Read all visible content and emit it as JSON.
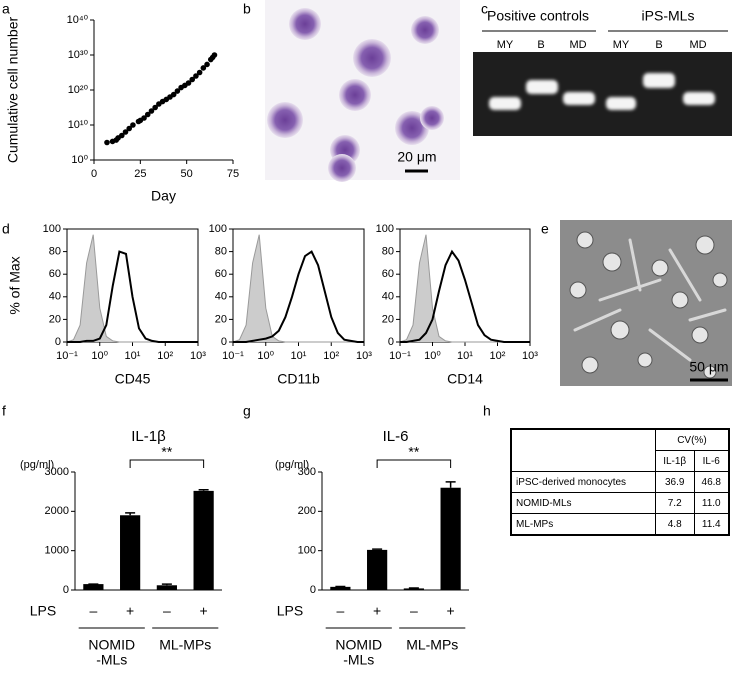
{
  "panel_labels": [
    "a",
    "b",
    "c",
    "d",
    "e",
    "f",
    "g",
    "h"
  ],
  "chart_data": [
    {
      "type": "scatter",
      "xlabel": "Day",
      "ylabel": "Cumulative cell number",
      "color": "#000000",
      "yscale": "log",
      "x": [
        7,
        10,
        12,
        13,
        15,
        17,
        19,
        21,
        24,
        25,
        27,
        29,
        31,
        33,
        35,
        37,
        39,
        41,
        43,
        45,
        47,
        49,
        51,
        53,
        55,
        57,
        59,
        61,
        63,
        64,
        65
      ],
      "values": [
        100000.0,
        200000.0,
        500000.0,
        2000000.0,
        10000000.0,
        100000000.0,
        1000000000.0,
        10000000000.0,
        100000000000.0,
        200000000000.0,
        1000000000000.0,
        10000000000000.0,
        100000000000000.0,
        1000000000000000.0,
        1e+16,
        5e+16,
        2e+17,
        1e+18,
        5e+18,
        5e+19,
        5e+20,
        2e+21,
        1e+22,
        1e+23,
        1e+24,
        1e+25,
        2e+26,
        2e+27,
        5e+28,
        2e+29,
        1e+30
      ],
      "xlim": [
        0,
        75
      ],
      "xticks": [
        0,
        25,
        50,
        75
      ],
      "ylim": [
        1,
        1e+40
      ],
      "yticks": [
        {
          "value": 1,
          "label": "10⁰"
        },
        {
          "value": 10000000000.0,
          "label": "10¹⁰"
        },
        {
          "value": 1e+20,
          "label": "10²⁰"
        },
        {
          "value": 1e+30,
          "label": "10³⁰"
        },
        {
          "value": 1e+40,
          "label": "10⁴⁰"
        }
      ]
    },
    {
      "type": "line",
      "xlabel": "CD45",
      "ylabel": "% of Max",
      "xscale": "log",
      "x": [
        0.1,
        0.158,
        0.251,
        0.398,
        0.631,
        1,
        1.58,
        2.51,
        3.98,
        6.31,
        10,
        15.8,
        25.1,
        39.8,
        63.1,
        100,
        158,
        251,
        398,
        631,
        1000
      ],
      "series": [
        {
          "color": "#9a9a9a",
          "fill": "#cccccc",
          "values": [
            0,
            2,
            15,
            70,
            95,
            30,
            5,
            1,
            0,
            0,
            0,
            0,
            0,
            0,
            0,
            0,
            0,
            0,
            0,
            0,
            0
          ]
        },
        {
          "color": "#000000",
          "values": [
            0,
            0,
            0,
            1,
            1,
            3,
            15,
            50,
            80,
            78,
            40,
            12,
            3,
            1,
            0,
            0,
            0,
            0,
            0,
            0,
            0
          ]
        }
      ],
      "xlim": [
        0.1,
        1000
      ],
      "xticks": [
        {
          "value": 0.1,
          "label": "10⁻¹"
        },
        {
          "value": 1,
          "label": "10⁰"
        },
        {
          "value": 10,
          "label": "10¹"
        },
        {
          "value": 100,
          "label": "10²"
        },
        {
          "value": 1000,
          "label": "10³"
        }
      ],
      "ylim": [
        0,
        100
      ],
      "yticks": [
        0,
        20,
        40,
        60,
        80,
        100
      ]
    },
    {
      "type": "line",
      "xlabel": "CD11b",
      "xscale": "log",
      "x": [
        0.1,
        0.158,
        0.251,
        0.398,
        0.631,
        1,
        1.58,
        2.51,
        3.98,
        6.31,
        10,
        15.8,
        25.1,
        39.8,
        63.1,
        100,
        158,
        251,
        398,
        631,
        1000
      ],
      "series": [
        {
          "color": "#9a9a9a",
          "fill": "#cccccc",
          "values": [
            0,
            2,
            15,
            70,
            95,
            30,
            5,
            1,
            0,
            0,
            0,
            0,
            0,
            0,
            0,
            0,
            0,
            0,
            0,
            0,
            0
          ]
        },
        {
          "color": "#000000",
          "values": [
            0,
            0,
            0,
            1,
            2,
            3,
            5,
            10,
            22,
            40,
            60,
            76,
            80,
            68,
            45,
            22,
            8,
            2,
            1,
            0,
            0
          ]
        }
      ],
      "xlim": [
        0.1,
        1000
      ],
      "xticks": [
        {
          "value": 0.1,
          "label": "10⁻¹"
        },
        {
          "value": 1,
          "label": "10⁰"
        },
        {
          "value": 10,
          "label": "10¹"
        },
        {
          "value": 100,
          "label": "10²"
        },
        {
          "value": 1000,
          "label": "10³"
        }
      ],
      "ylim": [
        0,
        100
      ],
      "yticks": [
        0,
        20,
        40,
        60,
        80,
        100
      ]
    },
    {
      "type": "line",
      "xlabel": "CD14",
      "xscale": "log",
      "x": [
        0.1,
        0.158,
        0.251,
        0.398,
        0.631,
        1,
        1.58,
        2.51,
        3.98,
        6.31,
        10,
        15.8,
        25.1,
        39.8,
        63.1,
        100,
        158,
        251,
        398,
        631,
        1000
      ],
      "series": [
        {
          "color": "#9a9a9a",
          "fill": "#cccccc",
          "values": [
            0,
            2,
            15,
            70,
            95,
            30,
            5,
            1,
            0,
            0,
            0,
            0,
            0,
            0,
            0,
            0,
            0,
            0,
            0,
            0,
            0
          ]
        },
        {
          "color": "#000000",
          "values": [
            0,
            0,
            1,
            2,
            8,
            20,
            45,
            68,
            80,
            72,
            55,
            35,
            15,
            6,
            2,
            1,
            0,
            0,
            0,
            0,
            0
          ]
        }
      ],
      "xlim": [
        0.1,
        1000
      ],
      "xticks": [
        {
          "value": 0.1,
          "label": "10⁻¹"
        },
        {
          "value": 1,
          "label": "10⁰"
        },
        {
          "value": 10,
          "label": "10¹"
        },
        {
          "value": 100,
          "label": "10²"
        },
        {
          "value": 1000,
          "label": "10³"
        }
      ],
      "ylim": [
        0,
        100
      ],
      "yticks": [
        0,
        20,
        40,
        60,
        80,
        100
      ]
    },
    {
      "type": "bar",
      "title": "IL-1β",
      "ylabel": "(pg/ml)",
      "color": "#000000",
      "row_label": "LPS",
      "categories": [
        "–",
        "+",
        "–",
        "+"
      ],
      "groups": [
        [
          "NOMID",
          "-MLs"
        ],
        [
          "ML-MPs"
        ]
      ],
      "values": [
        150,
        1900,
        120,
        2520
      ],
      "errors": [
        0,
        60,
        30,
        30
      ],
      "annotation": "**",
      "ylim": [
        0,
        3000
      ],
      "yticks": [
        0,
        1000,
        2000,
        3000
      ]
    },
    {
      "type": "bar",
      "title": "IL-6",
      "ylabel": "(pg/ml)",
      "color": "#000000",
      "row_label": "LPS",
      "categories": [
        "–",
        "+",
        "–",
        "+"
      ],
      "groups": [
        [
          "NOMID",
          "-MLs"
        ],
        [
          "ML-MPs"
        ]
      ],
      "values": [
        8,
        102,
        4,
        260
      ],
      "errors": [
        1,
        2,
        1,
        15
      ],
      "annotation": "**",
      "ylim": [
        0,
        300
      ],
      "yticks": [
        0,
        100,
        200,
        300
      ]
    }
  ],
  "panel_b": {
    "scale_bar": "20 μm"
  },
  "gel": {
    "groups": [
      "Positive controls",
      "iPS-MLs"
    ],
    "lanes": [
      "MY",
      "B",
      "MD",
      "MY",
      "B",
      "MD"
    ]
  },
  "panel_e": {
    "scale_bar": "50 μm"
  },
  "table": {
    "group_header": "CV(%)",
    "columns": [
      "IL-1β",
      "IL-6"
    ],
    "rows": [
      [
        "iPSC-derived monocytes",
        "36.9",
        "46.8"
      ],
      [
        "NOMID-MLs",
        "7.2",
        "11.0"
      ],
      [
        "ML-MPs",
        "4.8",
        "11.4"
      ]
    ]
  }
}
